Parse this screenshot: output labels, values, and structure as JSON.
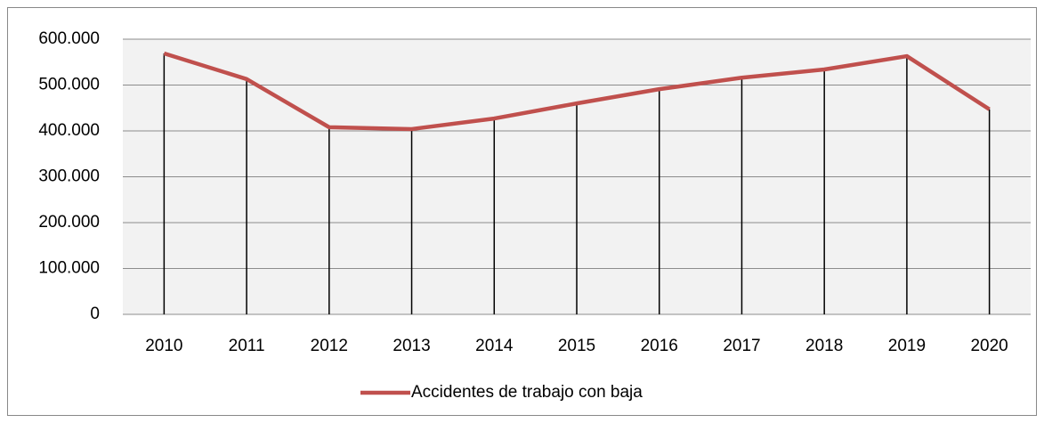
{
  "chart_data": {
    "type": "line",
    "categories": [
      "2010",
      "2011",
      "2012",
      "2013",
      "2014",
      "2015",
      "2016",
      "2017",
      "2018",
      "2019",
      "2020"
    ],
    "series": [
      {
        "name": "Accidentes de trabajo con baja",
        "color": "#c0504d",
        "values": [
          569000,
          513000,
          408000,
          404000,
          427000,
          460000,
          491000,
          516000,
          534000,
          563000,
          447000
        ]
      }
    ],
    "ylim": [
      0,
      600000
    ],
    "yticks": [
      0,
      {
        "value": 100000,
        "label": "100.000"
      },
      {
        "value": 200000,
        "label": "200.000"
      },
      {
        "value": 300000,
        "label": "300.000"
      },
      {
        "value": 400000,
        "label": "400.000"
      },
      {
        "value": 500000,
        "label": "500.000"
      },
      {
        "value": 600000,
        "label": "600.000"
      }
    ],
    "grid": true,
    "drop_lines": true,
    "legend": "bottom"
  }
}
